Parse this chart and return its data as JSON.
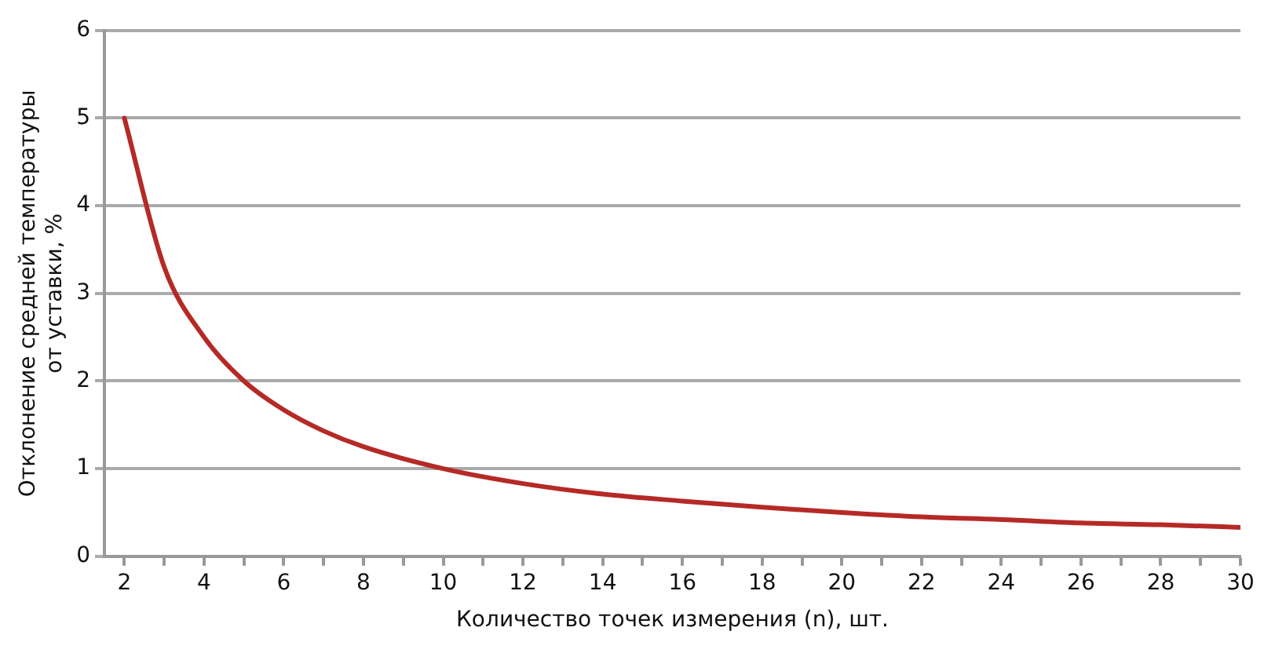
{
  "chart_data": {
    "type": "line",
    "xlabel": "Количество точек измерения (n), шт.",
    "ylabel": "Отклонение средней температуры\nот уставки, %",
    "x": [
      2,
      3,
      4,
      5,
      6,
      7,
      8,
      10,
      12,
      14,
      16,
      18,
      20,
      22,
      24,
      26,
      28,
      30
    ],
    "series": [
      {
        "color": "#b52a26",
        "values": [
          5.0,
          3.3,
          2.5,
          2.0,
          1.67,
          1.43,
          1.25,
          1.0,
          0.83,
          0.71,
          0.63,
          0.56,
          0.5,
          0.45,
          0.42,
          0.38,
          0.36,
          0.33
        ]
      }
    ],
    "xlim": [
      1.5,
      30
    ],
    "xticks": [
      2,
      {
        "value": 3,
        "label": null
      },
      4,
      {
        "value": 5,
        "label": null
      },
      6,
      {
        "value": 7,
        "label": null
      },
      8,
      {
        "value": 9,
        "label": null
      },
      10,
      {
        "value": 11,
        "label": null
      },
      12,
      {
        "value": 13,
        "label": null
      },
      14,
      {
        "value": 15,
        "label": null
      },
      16,
      {
        "value": 17,
        "label": null
      },
      18,
      {
        "value": 19,
        "label": null
      },
      20,
      {
        "value": 21,
        "label": null
      },
      22,
      {
        "value": 23,
        "label": null
      },
      24,
      {
        "value": 25,
        "label": null
      },
      26,
      {
        "value": 27,
        "label": null
      },
      28,
      {
        "value": 29,
        "label": null
      },
      30
    ],
    "ylim": [
      0,
      6
    ],
    "yticks": [
      0,
      1,
      2,
      3,
      4,
      5,
      6
    ],
    "grid": "y",
    "legend": false,
    "marker": "none",
    "line_style": "solid"
  }
}
